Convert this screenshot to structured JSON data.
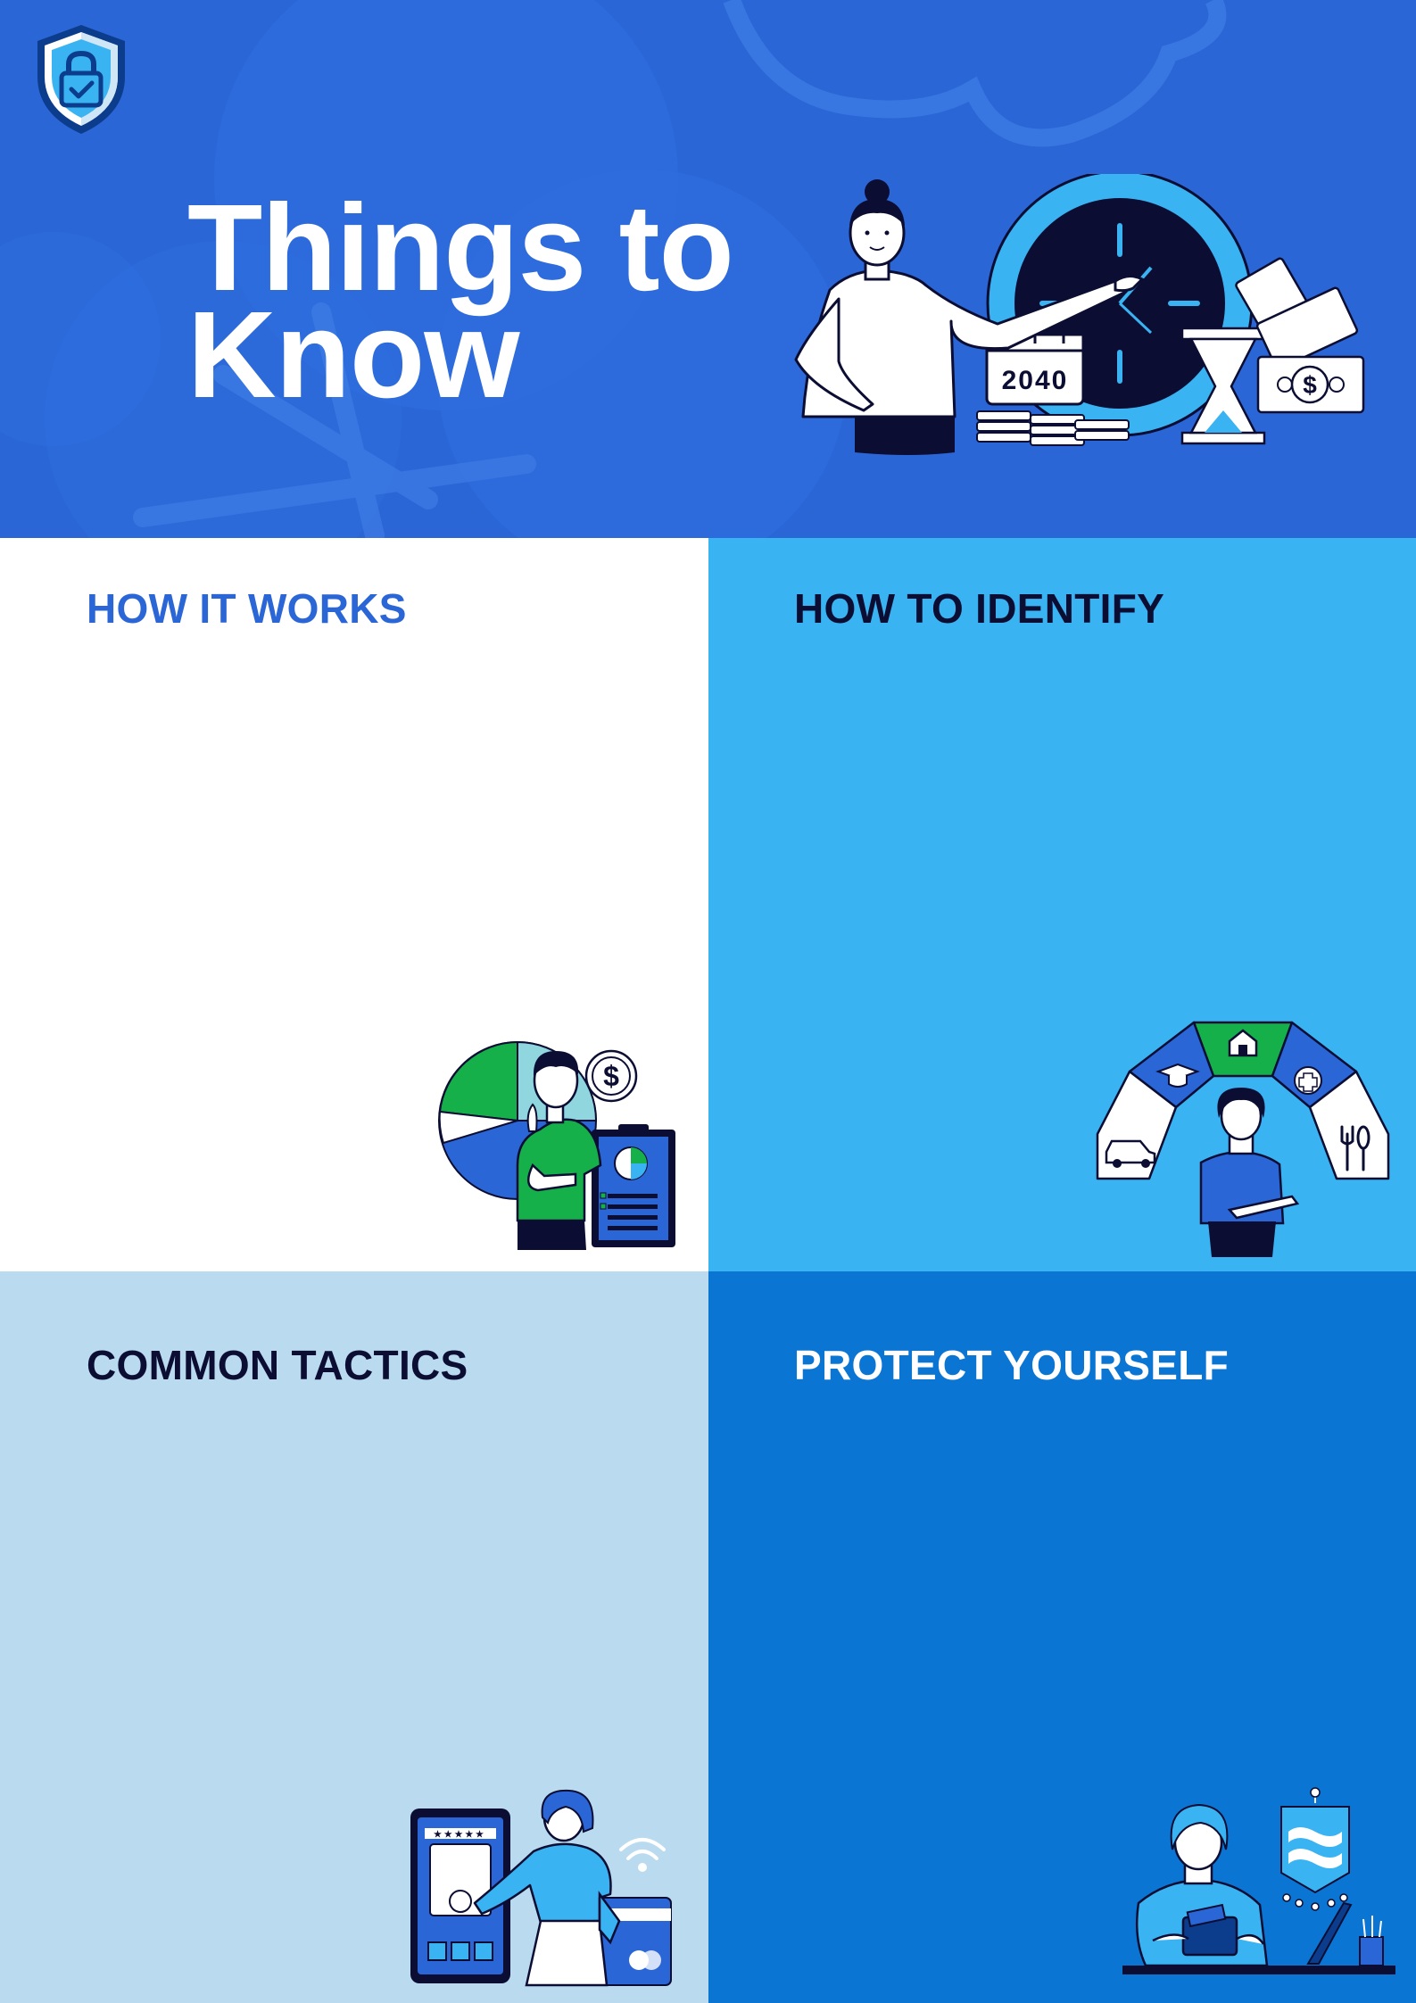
{
  "header": {
    "title_line1": "Things to",
    "title_line2": "Know",
    "hero_year": "2040",
    "colors": {
      "background": "#2b66d6",
      "title": "#ffffff"
    },
    "logo_icon": "shield-lock-check-icon"
  },
  "sections": [
    {
      "heading": "HOW IT WORKS",
      "background": "#ffffff",
      "heading_color": "#2b66d6",
      "illustration": "person-pie-chart-clipboard"
    },
    {
      "heading": "HOW TO IDENTIFY",
      "background": "#3ab3f3",
      "heading_color": "#0c0d33",
      "illustration": "person-expense-categories-arc"
    },
    {
      "heading": "COMMON TACTICS",
      "background": "#b9daef",
      "heading_color": "#0c0d33",
      "illustration": "person-phone-payment-card"
    },
    {
      "heading": "PROTECT YOURSELF",
      "background": "#0b75d3",
      "heading_color": "#ffffff",
      "illustration": "person-wallet-desk"
    }
  ]
}
